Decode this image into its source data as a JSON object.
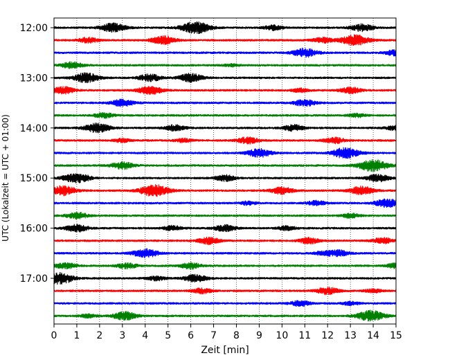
{
  "chart_data": {
    "type": "line",
    "title": "",
    "xlabel": "Zeit  [min]",
    "ylabel": "UTC (Lokalzeit = UTC + 01:00)",
    "xlim": [
      0,
      15
    ],
    "x_ticks": [
      "0",
      "1",
      "2",
      "3",
      "4",
      "5",
      "6",
      "7",
      "8",
      "9",
      "10",
      "11",
      "12",
      "13",
      "14",
      "15"
    ],
    "y_ticks": [
      {
        "label": "12:00",
        "row": 0
      },
      {
        "label": "13:00",
        "row": 4
      },
      {
        "label": "14:00",
        "row": 8
      },
      {
        "label": "15:00",
        "row": 12
      },
      {
        "label": "16:00",
        "row": 16
      },
      {
        "label": "17:00",
        "row": 20
      }
    ],
    "grid": "vertical-dotted",
    "colors": [
      "#000000",
      "#ff0000",
      "#0000ff",
      "#008000"
    ],
    "traces": [
      {
        "start": "12:00",
        "color": "#000000",
        "events": [
          [
            2.6,
            0.75
          ],
          [
            6.2,
            1.0
          ],
          [
            9.6,
            0.4
          ],
          [
            13.5,
            0.6
          ]
        ]
      },
      {
        "start": "12:15",
        "color": "#ff0000",
        "events": [
          [
            1.5,
            0.45
          ],
          [
            4.8,
            0.7
          ],
          [
            11.8,
            0.45
          ],
          [
            13.2,
            0.9
          ]
        ]
      },
      {
        "start": "12:30",
        "color": "#0000ff",
        "events": [
          [
            11.0,
            0.75
          ],
          [
            15.0,
            0.5
          ]
        ]
      },
      {
        "start": "12:45",
        "color": "#008000",
        "events": [
          [
            0.8,
            0.55
          ],
          [
            7.8,
            0.2
          ]
        ]
      },
      {
        "start": "13:00",
        "color": "#000000",
        "events": [
          [
            1.4,
            0.8
          ],
          [
            4.2,
            0.6
          ],
          [
            6.0,
            0.7
          ]
        ]
      },
      {
        "start": "13:15",
        "color": "#ff0000",
        "events": [
          [
            0.4,
            0.6
          ],
          [
            4.2,
            0.7
          ],
          [
            10.8,
            0.3
          ],
          [
            13.0,
            0.5
          ]
        ]
      },
      {
        "start": "13:30",
        "color": "#0000ff",
        "events": [
          [
            3.0,
            0.6
          ],
          [
            11.0,
            0.55
          ]
        ]
      },
      {
        "start": "13:45",
        "color": "#008000",
        "events": [
          [
            2.2,
            0.45
          ],
          [
            13.3,
            0.3
          ]
        ]
      },
      {
        "start": "14:00",
        "color": "#000000",
        "events": [
          [
            1.9,
            0.8
          ],
          [
            5.3,
            0.5
          ],
          [
            10.5,
            0.5
          ],
          [
            15.0,
            0.4
          ]
        ]
      },
      {
        "start": "14:15",
        "color": "#ff0000",
        "events": [
          [
            3.0,
            0.3
          ],
          [
            5.7,
            0.3
          ],
          [
            8.5,
            0.55
          ],
          [
            12.3,
            0.5
          ]
        ]
      },
      {
        "start": "14:30",
        "color": "#0000ff",
        "events": [
          [
            9.0,
            0.7
          ],
          [
            12.8,
            0.9
          ]
        ]
      },
      {
        "start": "14:45",
        "color": "#008000",
        "events": [
          [
            3.0,
            0.6
          ],
          [
            14.0,
            1.0
          ]
        ]
      },
      {
        "start": "15:00",
        "color": "#000000",
        "events": [
          [
            0.8,
            0.6
          ],
          [
            1.3,
            0.4
          ],
          [
            7.5,
            0.5
          ],
          [
            14.2,
            0.6
          ]
        ]
      },
      {
        "start": "15:15",
        "color": "#ff0000",
        "events": [
          [
            0.4,
            0.8
          ],
          [
            4.4,
            1.0
          ],
          [
            10.0,
            0.6
          ],
          [
            13.5,
            0.7
          ]
        ]
      },
      {
        "start": "15:30",
        "color": "#0000ff",
        "events": [
          [
            8.5,
            0.3
          ],
          [
            11.5,
            0.4
          ],
          [
            14.6,
            0.7
          ]
        ]
      },
      {
        "start": "15:45",
        "color": "#008000",
        "events": [
          [
            1.0,
            0.55
          ],
          [
            13.0,
            0.35
          ]
        ]
      },
      {
        "start": "16:00",
        "color": "#000000",
        "events": [
          [
            1.0,
            0.6
          ],
          [
            5.2,
            0.4
          ],
          [
            7.5,
            0.55
          ],
          [
            10.2,
            0.35
          ]
        ]
      },
      {
        "start": "16:15",
        "color": "#ff0000",
        "events": [
          [
            6.8,
            0.55
          ],
          [
            11.2,
            0.5
          ],
          [
            14.4,
            0.5
          ]
        ]
      },
      {
        "start": "16:30",
        "color": "#0000ff",
        "events": [
          [
            4.0,
            0.75
          ],
          [
            11.8,
            0.35
          ],
          [
            12.5,
            0.5
          ]
        ]
      },
      {
        "start": "16:45",
        "color": "#008000",
        "events": [
          [
            0.5,
            0.5
          ],
          [
            3.2,
            0.45
          ],
          [
            6.0,
            0.5
          ],
          [
            15.0,
            0.4
          ]
        ]
      },
      {
        "start": "17:00",
        "color": "#000000",
        "events": [
          [
            0.2,
            1.0
          ],
          [
            4.5,
            0.35
          ],
          [
            6.2,
            0.6
          ]
        ]
      },
      {
        "start": "17:15",
        "color": "#ff0000",
        "events": [
          [
            6.5,
            0.45
          ],
          [
            12.0,
            0.6
          ],
          [
            14.0,
            0.3
          ]
        ]
      },
      {
        "start": "17:30",
        "color": "#0000ff",
        "events": [
          [
            10.8,
            0.45
          ],
          [
            13.0,
            0.3
          ]
        ]
      },
      {
        "start": "17:45",
        "color": "#008000",
        "events": [
          [
            1.5,
            0.3
          ],
          [
            3.1,
            0.7
          ],
          [
            13.9,
            0.9
          ]
        ]
      }
    ]
  }
}
